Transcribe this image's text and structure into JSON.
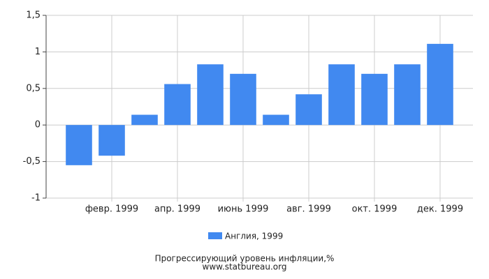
{
  "chart_data": {
    "type": "bar",
    "title": "Прогрессирующий уровень инфляции,%",
    "source": "www.statbureau.org",
    "categories": [
      null,
      "февр. 1999",
      null,
      "апр. 1999",
      null,
      "июнь 1999",
      null,
      "авг. 1999",
      null,
      "окт. 1999",
      null,
      "дек. 1999"
    ],
    "series": [
      {
        "name": "Англия, 1999",
        "color": "#4189f0",
        "values": [
          -0.55,
          -0.42,
          0.14,
          0.56,
          0.83,
          0.7,
          0.14,
          0.42,
          0.83,
          0.7,
          0.83,
          1.11
        ]
      }
    ],
    "ylim": [
      -1,
      1.5
    ],
    "yticks": [
      -1,
      {
        "value": -0.5,
        "label": "-0,5"
      },
      0,
      {
        "value": 0.5,
        "label": "0,5"
      },
      1,
      {
        "value": 1.5,
        "label": "1,5"
      }
    ],
    "grid": true
  }
}
